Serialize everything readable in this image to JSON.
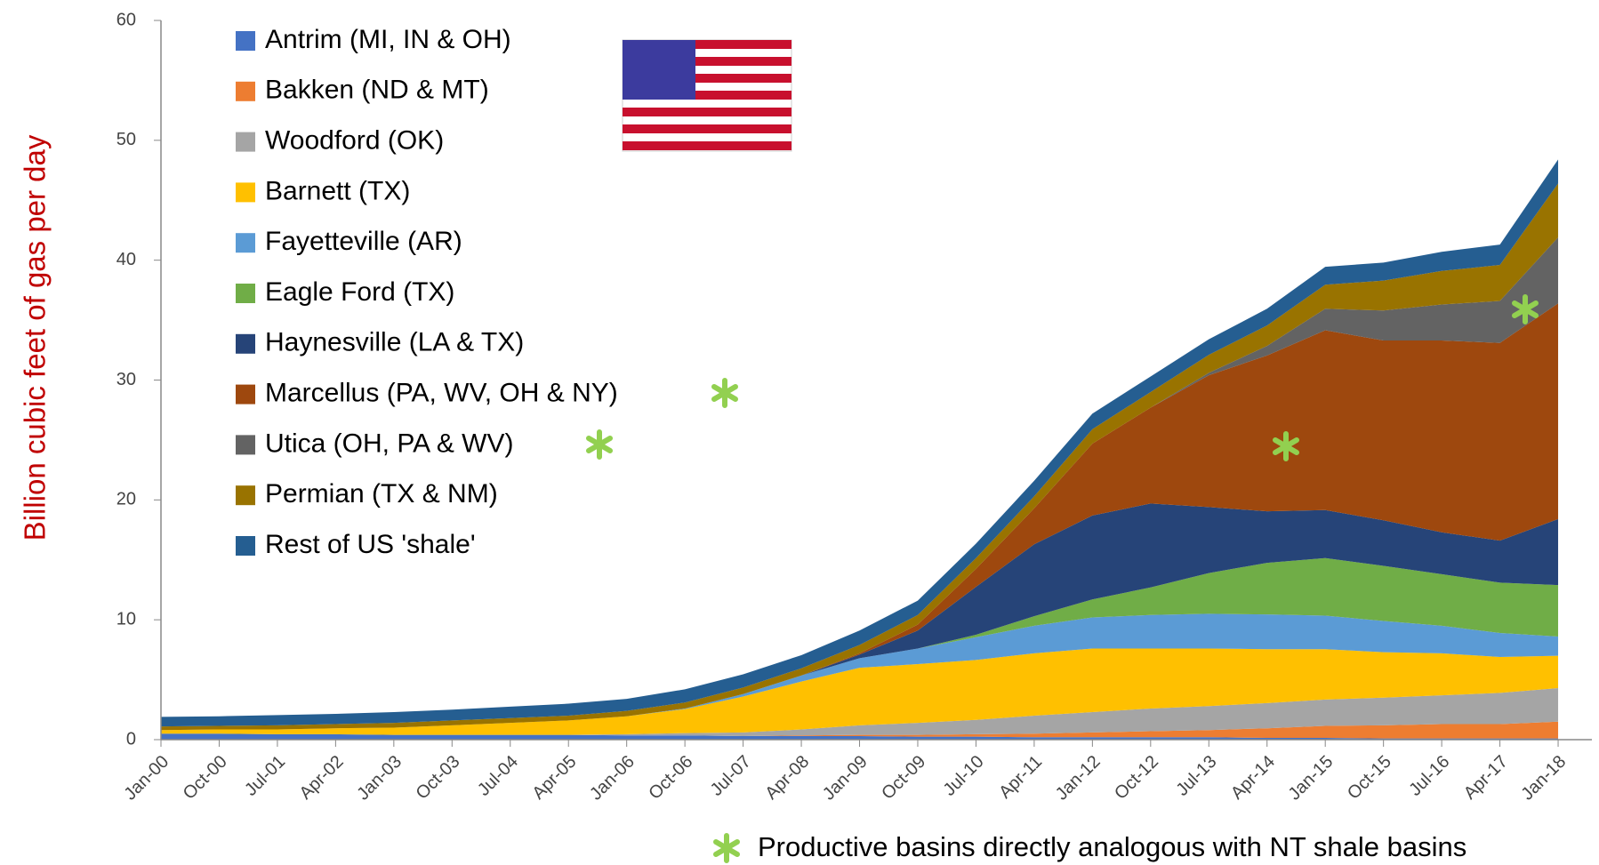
{
  "chart_data": {
    "type": "stacked_area",
    "y_label": "Billion cubic feet of gas per day",
    "footnote": "Productive basins directly analogous with NT shale basins",
    "categories": [
      "Jan-00",
      "Oct-00",
      "Jul-01",
      "Apr-02",
      "Jan-03",
      "Oct-03",
      "Jul-04",
      "Apr-05",
      "Jan-06",
      "Oct-06",
      "Jul-07",
      "Apr-08",
      "Jan-09",
      "Oct-09",
      "Jul-10",
      "Apr-11",
      "Jan-12",
      "Oct-12",
      "Jul-13",
      "Apr-14",
      "Jan-15",
      "Oct-15",
      "Jul-16",
      "Apr-17",
      "Jan-18"
    ],
    "ylim": [
      0,
      60
    ],
    "yticks": [
      0,
      10,
      20,
      30,
      40,
      50,
      60
    ],
    "series": [
      {
        "name": "Antrim (MI, IN & OH)",
        "color": "#4472c4",
        "values": [
          0.5,
          0.5,
          0.45,
          0.45,
          0.4,
          0.4,
          0.4,
          0.4,
          0.35,
          0.35,
          0.3,
          0.3,
          0.3,
          0.25,
          0.25,
          0.2,
          0.2,
          0.2,
          0.2,
          0.15,
          0.15,
          0.1,
          0.1,
          0.1,
          0.1
        ]
      },
      {
        "name": "Bakken (ND & MT)",
        "color": "#ed7d31",
        "values": [
          0,
          0,
          0,
          0,
          0,
          0,
          0,
          0,
          0,
          0,
          0,
          0.05,
          0.1,
          0.15,
          0.2,
          0.3,
          0.4,
          0.5,
          0.6,
          0.8,
          1.0,
          1.1,
          1.2,
          1.2,
          1.4
        ]
      },
      {
        "name": "Woodford (OK)",
        "color": "#a5a5a5",
        "values": [
          0,
          0,
          0,
          0,
          0,
          0,
          0,
          0,
          0.1,
          0.2,
          0.3,
          0.5,
          0.8,
          1.0,
          1.2,
          1.5,
          1.7,
          1.9,
          2.0,
          2.1,
          2.2,
          2.3,
          2.4,
          2.6,
          2.8
        ]
      },
      {
        "name": "Barnett (TX)",
        "color": "#ffc000",
        "values": [
          0.3,
          0.35,
          0.4,
          0.5,
          0.6,
          0.8,
          1.0,
          1.2,
          1.5,
          2.0,
          3.0,
          4.0,
          4.8,
          4.9,
          5.0,
          5.2,
          5.3,
          5.0,
          4.8,
          4.5,
          4.2,
          3.8,
          3.5,
          3.0,
          2.7
        ]
      },
      {
        "name": "Fayetteville (AR)",
        "color": "#5b9bd5",
        "values": [
          0,
          0,
          0,
          0,
          0,
          0,
          0,
          0,
          0,
          0.05,
          0.2,
          0.5,
          0.8,
          1.3,
          1.9,
          2.3,
          2.6,
          2.8,
          2.9,
          2.9,
          2.8,
          2.6,
          2.3,
          2.0,
          1.6
        ]
      },
      {
        "name": "Eagle Ford (TX)",
        "color": "#70ad47",
        "values": [
          0,
          0,
          0,
          0,
          0,
          0,
          0,
          0,
          0,
          0,
          0,
          0,
          0,
          0,
          0.2,
          0.8,
          1.5,
          2.3,
          3.4,
          4.3,
          4.8,
          4.6,
          4.3,
          4.2,
          4.3
        ]
      },
      {
        "name": "Haynesville (LA & TX)",
        "color": "#264478",
        "values": [
          0,
          0,
          0,
          0,
          0,
          0,
          0,
          0,
          0,
          0,
          0,
          0,
          0.3,
          1.5,
          4,
          6,
          7,
          7,
          5.5,
          4.3,
          4,
          3.8,
          3.5,
          3.5,
          5.5
        ]
      },
      {
        "name": "Marcellus (PA, WV, OH & NY)",
        "color": "#9e480e",
        "values": [
          0,
          0,
          0,
          0,
          0,
          0,
          0,
          0,
          0,
          0,
          0,
          0,
          0.1,
          0.5,
          1.5,
          3,
          6,
          8,
          11,
          13,
          15,
          15,
          16,
          16.5,
          18
        ]
      },
      {
        "name": "Utica (OH, PA & WV)",
        "color": "#636363",
        "values": [
          0,
          0,
          0,
          0,
          0,
          0,
          0,
          0,
          0,
          0,
          0,
          0,
          0,
          0,
          0,
          0,
          0,
          0,
          0.2,
          0.8,
          1.8,
          2.5,
          3,
          3.5,
          5.5
        ]
      },
      {
        "name": "Permian (TX & NM)",
        "color": "#997300",
        "values": [
          0.3,
          0.3,
          0.35,
          0.35,
          0.4,
          0.4,
          0.4,
          0.4,
          0.45,
          0.5,
          0.55,
          0.6,
          0.7,
          0.8,
          0.9,
          1.0,
          1.2,
          1.3,
          1.5,
          1.7,
          2.0,
          2.5,
          2.8,
          3.0,
          4.5
        ]
      },
      {
        "name": "Rest of US 'shale'",
        "color": "#255e91",
        "values": [
          0.8,
          0.8,
          0.85,
          0.85,
          0.9,
          0.9,
          0.95,
          1.0,
          1.0,
          1.1,
          1.1,
          1.1,
          1.2,
          1.2,
          1.2,
          1.3,
          1.3,
          1.3,
          1.3,
          1.4,
          1.5,
          1.5,
          1.6,
          1.7,
          2.0
        ]
      }
    ]
  }
}
